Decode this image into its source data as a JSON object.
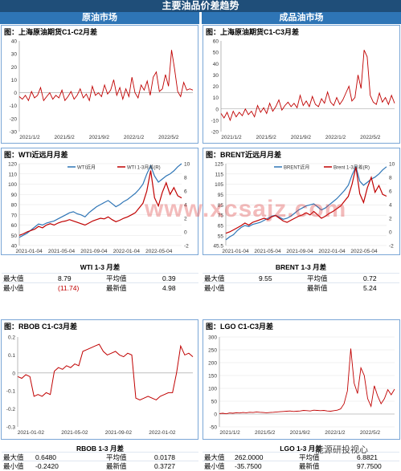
{
  "header": {
    "title": "主要油品价差趋势",
    "left_col": "原油市场",
    "right_col": "成品油市场"
  },
  "panels": {
    "p1": {
      "title": "图：上海原油期货C1-C2月差"
    },
    "p2": {
      "title": "图：上海原油期货C1-C3月差"
    },
    "p3": {
      "title": "图：WTI近远月月差"
    },
    "p4": {
      "title": "图：BRENT近远月月差"
    },
    "p5": {
      "title": "图：RBOB C1-C3月差"
    },
    "p6": {
      "title": "图：LGO C1-C3月差"
    }
  },
  "stats": {
    "wti": {
      "title": "WTI 1-3 月差",
      "max_label": "最大值",
      "max": "8.79",
      "avg_label": "平均值",
      "avg": "0.39",
      "min_label": "最小值",
      "min": "(11.74)",
      "latest_label": "最新值",
      "latest": "4.98"
    },
    "brent": {
      "title": "BRENT 1-3 月差",
      "max_label": "最大值",
      "max": "9.55",
      "avg_label": "平均值",
      "avg": "0.72",
      "min_label": "最小值",
      "min": "",
      "latest_label": "最新值",
      "latest": "5.24"
    },
    "rbob": {
      "title": "RBOB 1-3 月差",
      "max_label": "最大值",
      "max": "0.6480",
      "avg_label": "平均值",
      "avg": "0.0178",
      "min_label": "最小值",
      "min": "-0.2420",
      "latest_label": "最新值",
      "latest": "0.3727"
    },
    "lgo": {
      "title": "LGO 1-3 月差",
      "max_label": "最大值",
      "max": "262.0000",
      "avg_label": "平均值",
      "avg": "6.8821",
      "min_label": "最小值",
      "min": "-35.7500",
      "latest_label": "最新值",
      "latest": "97.7500"
    }
  },
  "watermark": {
    "text": "www.xcsajz.com",
    "brand": "能源研投视心"
  },
  "colors": {
    "red": "#c00000",
    "blue": "#2e75b6",
    "header": "#1f4e79"
  },
  "chart_data": [
    {
      "type": "line",
      "title": "图：上海原油期货C1-C2月差",
      "x_ticks": [
        "2021/1/2",
        "2021/5/2",
        "2021/9/2",
        "2022/1/2",
        "2022/5/2"
      ],
      "ylim": [
        -30,
        40
      ],
      "y_ticks": [
        40,
        30,
        20,
        10,
        0,
        -10,
        -20,
        -30
      ],
      "series": [
        {
          "values": [
            -3,
            -5,
            -2,
            -6,
            1,
            -4,
            -2,
            4,
            -6,
            -3,
            0,
            -5,
            -2,
            -4,
            2,
            -6,
            -3,
            1,
            -5,
            -2,
            3,
            -4,
            -1,
            -6,
            5,
            -2,
            0,
            -3,
            6,
            -1,
            2,
            10,
            -2,
            4,
            -5,
            3,
            -3,
            12,
            0,
            -4,
            6,
            2,
            9,
            -2,
            12,
            16,
            1,
            3,
            14,
            5,
            33,
            18,
            1,
            -3,
            8,
            2,
            3,
            2
          ]
        }
      ]
    },
    {
      "type": "line",
      "title": "图：上海原油期货C1-C3月差",
      "x_ticks": [
        "2021/1/2",
        "2021/5/2",
        "2021/9/2",
        "2022/1/2",
        "2022/5/2"
      ],
      "ylim": [
        -20,
        60
      ],
      "y_ticks": [
        60,
        50,
        40,
        30,
        20,
        10,
        0,
        -10,
        -20
      ],
      "series": [
        {
          "values": [
            -4,
            -8,
            -3,
            -10,
            -2,
            -7,
            -3,
            -6,
            0,
            -5,
            -2,
            -7,
            3,
            -3,
            1,
            -4,
            5,
            -2,
            2,
            8,
            -1,
            3,
            6,
            2,
            5,
            1,
            12,
            3,
            7,
            2,
            11,
            4,
            2,
            9,
            5,
            15,
            6,
            3,
            10,
            4,
            8,
            14,
            20,
            7,
            10,
            30,
            18,
            52,
            46,
            12,
            6,
            4,
            14,
            6,
            10,
            4,
            12,
            5
          ]
        }
      ]
    },
    {
      "type": "line",
      "title": "图：WTI近远月月差",
      "x_ticks": [
        "2021-01-04",
        "2021-05-04",
        "2021-09-04",
        "2022-01-04",
        "2022-05-04"
      ],
      "ylim": [
        40,
        120
      ],
      "y_ticks": [
        120,
        110,
        100,
        90,
        80,
        70,
        60,
        50,
        40
      ],
      "y2lim": [
        -2,
        10
      ],
      "y2_ticks": [
        10,
        8,
        6,
        4,
        2,
        0,
        -2
      ],
      "legend": [
        "WTI近月",
        "WTI 1-3月差(R)"
      ],
      "series": [
        {
          "name": "WTI近月",
          "values": [
            48,
            50,
            52,
            55,
            58,
            61,
            60,
            62,
            63,
            64,
            66,
            68,
            70,
            72,
            73,
            71,
            70,
            68,
            72,
            75,
            78,
            80,
            82,
            84,
            81,
            78,
            80,
            83,
            85,
            88,
            91,
            95,
            100,
            110,
            118,
            108,
            102,
            105,
            108,
            110,
            113,
            117,
            120
          ]
        },
        {
          "name": "WTI 1-3月差(R)",
          "values": [
            -0.5,
            -0.3,
            0.0,
            0.2,
            0.4,
            0.8,
            0.6,
            1.0,
            1.2,
            1.0,
            1.3,
            1.5,
            1.6,
            1.8,
            1.6,
            1.4,
            1.2,
            1.0,
            1.3,
            1.6,
            1.8,
            2.0,
            1.9,
            2.2,
            1.8,
            1.5,
            1.7,
            2.0,
            2.2,
            2.5,
            2.8,
            3.5,
            4.2,
            6.0,
            9.0,
            5.0,
            3.8,
            5.8,
            7.2,
            5.5,
            6.5,
            5.3,
            4.98
          ]
        }
      ]
    },
    {
      "type": "line",
      "title": "图：BRENT近远月月差",
      "x_ticks": [
        "2021-01-04",
        "2021-05-04",
        "2021-09-04",
        "2022-01-04",
        "2022-05-04"
      ],
      "ylim": [
        45.5,
        125
      ],
      "y_ticks": [
        125.0,
        115.0,
        105.0,
        95.0,
        85.0,
        75.0,
        65.0,
        55.0,
        45.5
      ],
      "y2lim": [
        -2,
        10
      ],
      "y2_ticks": [
        10,
        8,
        6,
        4,
        2,
        0,
        -2
      ],
      "legend": [
        "BRENT近月",
        "Brent 1-3月差(R)"
      ],
      "series": [
        {
          "name": "BRENT近月",
          "values": [
            51,
            54,
            56,
            60,
            63,
            65,
            64,
            66,
            67,
            68,
            70,
            72,
            74,
            75,
            73,
            71,
            72,
            74,
            77,
            80,
            82,
            84,
            85,
            86,
            83,
            80,
            82,
            85,
            88,
            91,
            95,
            99,
            104,
            114,
            122,
            108,
            104,
            107,
            110,
            112,
            115,
            119,
            122
          ]
        },
        {
          "name": "Brent 1-3月差(R)",
          "values": [
            -0.2,
            0.0,
            0.3,
            0.6,
            0.9,
            1.3,
            1.0,
            1.4,
            1.6,
            1.8,
            2.0,
            1.8,
            2.2,
            2.4,
            2.0,
            1.6,
            1.4,
            1.7,
            2.0,
            2.3,
            2.5,
            2.8,
            2.5,
            3.0,
            2.5,
            2.0,
            2.3,
            2.7,
            3.0,
            3.4,
            3.8,
            4.5,
            5.2,
            7.0,
            9.5,
            5.6,
            4.3,
            6.5,
            8.0,
            5.8,
            6.8,
            5.5,
            5.24
          ]
        }
      ]
    },
    {
      "type": "line",
      "title": "图：RBOB C1-C3月差",
      "x_ticks": [
        "2021-01-02",
        "2021-05-02",
        "2021-09-02",
        "2022-01-02"
      ],
      "ylim": [
        -0.3,
        0.2
      ],
      "y_ticks": [
        0.2,
        0.1,
        0,
        -0.1,
        -0.2,
        -0.3
      ],
      "series": [
        {
          "values": [
            -0.02,
            -0.03,
            -0.01,
            -0.02,
            -0.13,
            -0.12,
            -0.13,
            -0.11,
            -0.12,
            0.01,
            0.03,
            0.02,
            0.04,
            0.03,
            0.05,
            0.04,
            0.12,
            0.13,
            0.14,
            0.15,
            0.16,
            0.12,
            0.1,
            0.11,
            0.12,
            0.1,
            0.09,
            0.11,
            0.1,
            -0.14,
            -0.15,
            -0.14,
            -0.13,
            -0.14,
            -0.15,
            -0.13,
            -0.12,
            -0.11,
            -0.11,
            0.0,
            0.15,
            0.1,
            0.11,
            0.09
          ]
        }
      ]
    },
    {
      "type": "line",
      "title": "图：LGO C1-C3月差",
      "x_ticks": [
        "2021/1/2",
        "2021/5/2",
        "2021/9/2",
        "2022/1/2",
        "2022/5/2"
      ],
      "ylim": [
        -50,
        300
      ],
      "y_ticks": [
        300,
        250,
        200,
        150,
        100,
        50,
        0,
        -50
      ],
      "series": [
        {
          "values": [
            2,
            3,
            1,
            4,
            3,
            5,
            4,
            6,
            5,
            7,
            6,
            8,
            7,
            6,
            5,
            6,
            7,
            8,
            9,
            10,
            11,
            12,
            10,
            11,
            12,
            14,
            13,
            12,
            15,
            14,
            13,
            14,
            12,
            11,
            13,
            15,
            20,
            40,
            90,
            255,
            120,
            80,
            180,
            150,
            60,
            30,
            110,
            70,
            40,
            60,
            95,
            75,
            97
          ]
        }
      ]
    }
  ]
}
